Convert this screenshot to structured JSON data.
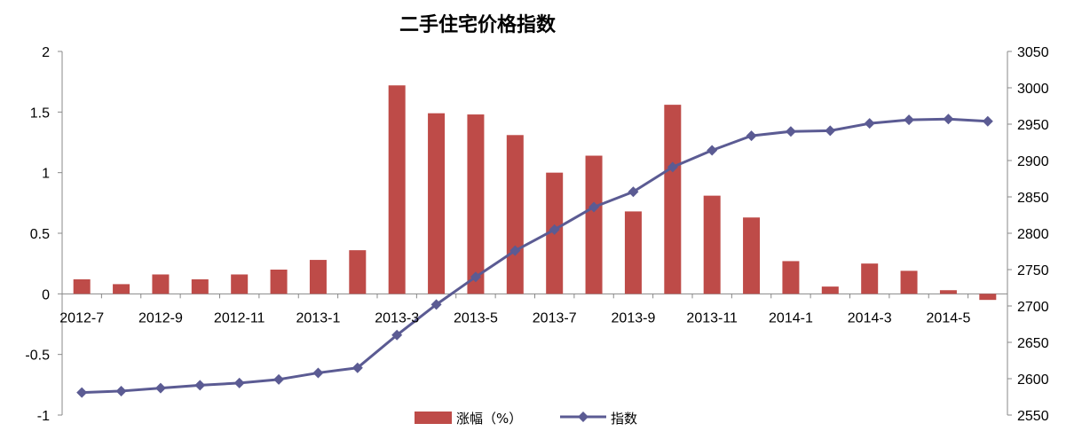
{
  "chart_data": {
    "type": "bar+line",
    "title": "二手住宅价格指数",
    "xlabel": "",
    "ylabel": "",
    "categories": [
      "2012-7",
      "2012-8",
      "2012-9",
      "2012-10",
      "2012-11",
      "2012-12",
      "2013-1",
      "2013-2",
      "2013-3",
      "2013-4",
      "2013-5",
      "2013-6",
      "2013-7",
      "2013-8",
      "2013-9",
      "2013-10",
      "2013-11",
      "2013-12",
      "2014-1",
      "2014-2",
      "2014-3",
      "2014-4",
      "2014-5",
      "2014-6"
    ],
    "x_tick_labels": [
      "2012-7",
      "2012-9",
      "2012-11",
      "2013-1",
      "2013-3",
      "2013-5",
      "2013-7",
      "2013-9",
      "2013-11",
      "2014-1",
      "2014-3",
      "2014-5"
    ],
    "series": [
      {
        "name": "涨幅（%）",
        "type": "bar",
        "axis": "left",
        "color": "#be4b48",
        "values": [
          0.12,
          0.08,
          0.16,
          0.12,
          0.16,
          0.2,
          0.28,
          0.36,
          1.72,
          1.49,
          1.48,
          1.31,
          1.0,
          1.14,
          0.68,
          1.56,
          0.81,
          0.63,
          0.27,
          0.06,
          0.25,
          0.19,
          0.03,
          -0.05
        ]
      },
      {
        "name": "指数",
        "type": "line",
        "axis": "right",
        "color": "#5b5b93",
        "marker": "diamond",
        "values": [
          2581,
          2583,
          2587,
          2591,
          2594,
          2599,
          2608,
          2615,
          2660,
          2702,
          2740,
          2776,
          2805,
          2836,
          2857,
          2891,
          2914,
          2934,
          2940,
          2941,
          2951,
          2956,
          2957,
          2954
        ]
      }
    ],
    "y_left": {
      "ylim": [
        -1,
        2
      ],
      "ticks": [
        -1,
        -0.5,
        0,
        0.5,
        1,
        1.5,
        2
      ],
      "tick_labels": [
        "-1",
        "-0.5",
        "0",
        "0.5",
        "1",
        "1.5",
        "2"
      ]
    },
    "y_right": {
      "ylim": [
        2550,
        3050
      ],
      "ticks": [
        2550,
        2600,
        2650,
        2700,
        2750,
        2800,
        2850,
        2900,
        2950,
        3000,
        3050
      ],
      "tick_labels": [
        "2550",
        "2600",
        "2650",
        "2700",
        "2750",
        "2800",
        "2850",
        "2900",
        "2950",
        "3000",
        "3050"
      ]
    },
    "grid": false,
    "legend_position": "bottom"
  }
}
